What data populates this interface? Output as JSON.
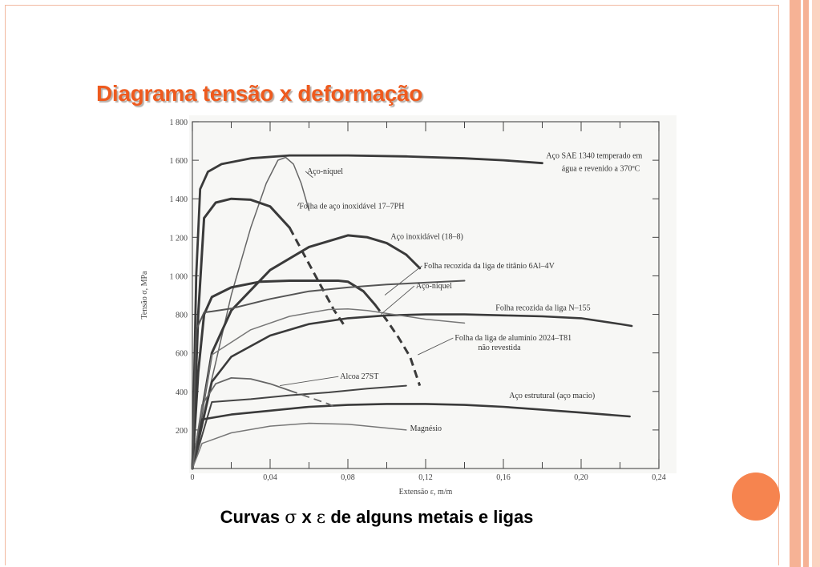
{
  "slide": {
    "title": "Diagrama tensão x deformação",
    "caption_prefix": "Curvas ",
    "caption_sigma": "σ",
    "caption_x": " x ",
    "caption_eps": "ε",
    "caption_suffix": "  de alguns metais e ligas",
    "accent_color": "#ee5a1e",
    "circle_color": "#f6844f",
    "stripe_colors": [
      "#f6b295",
      "#fbd3c1"
    ]
  },
  "chart_data": {
    "type": "line",
    "xlabel": "Extensão ε, m/m",
    "ylabel": "Tensão σ, MPa",
    "xlim": [
      0,
      0.24
    ],
    "ylim": [
      0,
      1800
    ],
    "xticks": [
      "0",
      "0,04",
      "0,08",
      "0,12",
      "0,16",
      "0,20",
      "0,24"
    ],
    "yticks": [
      "200",
      "400",
      "600",
      "800",
      "1 000",
      "1 200",
      "1 400",
      "1 600",
      "1 800"
    ],
    "grid": false,
    "series": [
      {
        "label": "Aço SAE 1340 temperado em",
        "label2": "água e revenido a 370ºC",
        "x": [
          0,
          0.002,
          0.004,
          0.008,
          0.015,
          0.03,
          0.05,
          0.08,
          0.11,
          0.14,
          0.16,
          0.18
        ],
        "y": [
          0,
          1000,
          1450,
          1540,
          1580,
          1610,
          1625,
          1625,
          1620,
          1610,
          1600,
          1585
        ]
      },
      {
        "label": "Aço-níquel",
        "x": [
          0,
          0.005,
          0.012,
          0.02,
          0.03,
          0.038,
          0.044,
          0.048,
          0.052,
          0.056,
          0.06
        ],
        "y": [
          0,
          250,
          550,
          900,
          1250,
          1480,
          1600,
          1615,
          1580,
          1480,
          1340
        ]
      },
      {
        "label": "Folha de aço inoxidável 17–7PH",
        "x": [
          0,
          0.003,
          0.006,
          0.012,
          0.02,
          0.03,
          0.04,
          0.05,
          0.058,
          0.066,
          0.073,
          0.079
        ],
        "y": [
          0,
          800,
          1300,
          1380,
          1400,
          1395,
          1360,
          1250,
          1100,
          950,
          820,
          730
        ]
      },
      {
        "label": "Aço inoxidável (18–8)",
        "x": [
          0,
          0.01,
          0.02,
          0.04,
          0.06,
          0.08,
          0.09,
          0.1,
          0.11,
          0.117
        ],
        "y": [
          0,
          600,
          820,
          1030,
          1150,
          1210,
          1200,
          1170,
          1110,
          1040
        ]
      },
      {
        "label": "Folha recozida da liga de titânio 6Al–4V",
        "x": [
          0,
          0.003,
          0.006,
          0.01,
          0.02,
          0.035,
          0.05,
          0.065,
          0.075,
          0.08,
          0.088,
          0.094,
          0.1,
          0.106,
          0.112,
          0.117
        ],
        "y": [
          0,
          500,
          800,
          890,
          940,
          970,
          975,
          975,
          975,
          970,
          920,
          850,
          770,
          680,
          580,
          430
        ]
      },
      {
        "label": "Aço-níquel",
        "x": [
          0,
          0.002,
          0.006,
          0.01,
          0.02,
          0.04,
          0.06,
          0.08,
          0.1,
          0.12,
          0.14
        ],
        "y": [
          0,
          720,
          810,
          815,
          830,
          880,
          920,
          940,
          955,
          965,
          975
        ]
      },
      {
        "label": "Folha recozida da liga N–155",
        "x": [
          0,
          0.01,
          0.02,
          0.04,
          0.06,
          0.08,
          0.1,
          0.12,
          0.14,
          0.16,
          0.18,
          0.2,
          0.22,
          0.226
        ],
        "y": [
          0,
          450,
          580,
          690,
          750,
          780,
          795,
          800,
          800,
          795,
          790,
          780,
          750,
          740
        ]
      },
      {
        "label": "Folha da liga de alumínio 2024–T81",
        "label2": "não revestida",
        "x": [
          0,
          0.01,
          0.03,
          0.05,
          0.07,
          0.08,
          0.09,
          0.1,
          0.11,
          0.12,
          0.14
        ],
        "y": [
          0,
          590,
          720,
          790,
          825,
          828,
          820,
          805,
          790,
          775,
          755
        ]
      },
      {
        "label": "Alcoa 27ST",
        "x": [
          0,
          0.01,
          0.03,
          0.05,
          0.07,
          0.09,
          0.11
        ],
        "y": [
          0,
          345,
          360,
          380,
          395,
          415,
          430
        ]
      },
      {
        "label": "Aço estrutural (aço macio)",
        "x": [
          0,
          0.005,
          0.02,
          0.04,
          0.06,
          0.08,
          0.1,
          0.12,
          0.14,
          0.16,
          0.18,
          0.2,
          0.225
        ],
        "y": [
          0,
          255,
          280,
          300,
          320,
          330,
          335,
          335,
          330,
          320,
          305,
          290,
          270
        ]
      },
      {
        "label": "Magnésio",
        "x": [
          0,
          0.005,
          0.02,
          0.04,
          0.06,
          0.08,
          0.1,
          0.11
        ],
        "y": [
          0,
          130,
          185,
          220,
          235,
          230,
          210,
          200
        ]
      },
      {
        "label": "",
        "x": [
          0,
          0.005,
          0.012,
          0.02,
          0.03,
          0.04,
          0.05,
          0.06,
          0.07,
          0.073
        ],
        "y": [
          0,
          330,
          440,
          470,
          465,
          440,
          405,
          370,
          335,
          320
        ]
      }
    ]
  }
}
